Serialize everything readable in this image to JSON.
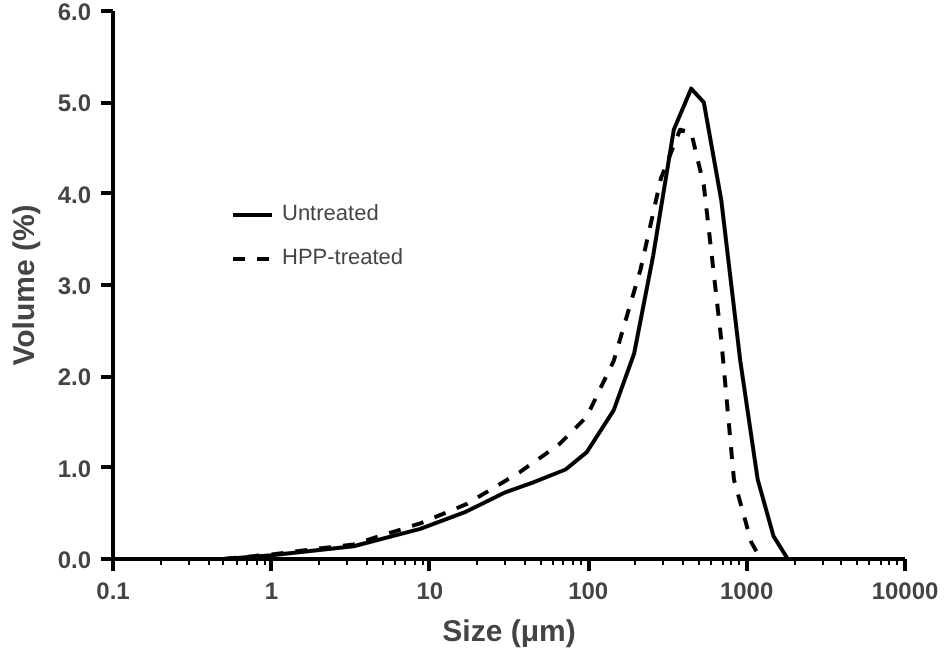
{
  "chart_data": {
    "type": "line",
    "xlabel": "Size (μm)",
    "ylabel": "Volume (%)",
    "log": "x",
    "grid": false,
    "legend": "top left",
    "marker": "none",
    "xlim": [
      0.1,
      10000
    ],
    "xticks": [
      0.1,
      1,
      10,
      100,
      1000,
      10000
    ],
    "ylim": [
      0,
      6
    ],
    "yticks": [
      {
        "value": 0,
        "label": "0.0"
      },
      {
        "value": 1,
        "label": "1.0"
      },
      {
        "value": 2,
        "label": "2.0"
      },
      {
        "value": 3,
        "label": "3.0"
      },
      {
        "value": 4,
        "label": "4.0"
      },
      {
        "value": 5,
        "label": "5.0"
      },
      {
        "value": 6,
        "label": "6.0"
      }
    ],
    "series": [
      {
        "name": "Untreated",
        "color": "#000000",
        "line_style": "solid",
        "x": [
          0.5,
          1.0,
          3.3,
          8.7,
          17,
          30,
          45,
          72,
          98,
          145,
          195,
          257,
          347,
          447,
          537,
          692,
          912,
          1175,
          1479,
          1820
        ],
        "values": [
          0,
          0.04,
          0.14,
          0.33,
          0.52,
          0.73,
          0.84,
          0.98,
          1.17,
          1.63,
          2.25,
          3.32,
          4.7,
          5.15,
          5.0,
          3.93,
          2.17,
          0.87,
          0.25,
          0
        ]
      },
      {
        "name": "HPP-treated",
        "color": "#000000",
        "line_style": "dashed",
        "x": [
          0.5,
          1.0,
          3.3,
          8.7,
          17,
          37,
          66,
          98,
          145,
          214,
          288,
          380,
          447,
          537,
          692,
          832,
          1072,
          1230
        ],
        "values": [
          0,
          0.05,
          0.16,
          0.39,
          0.6,
          0.95,
          1.26,
          1.56,
          2.17,
          3.17,
          4.17,
          4.7,
          4.67,
          4.09,
          2.4,
          0.87,
          0.18,
          0
        ]
      }
    ]
  }
}
